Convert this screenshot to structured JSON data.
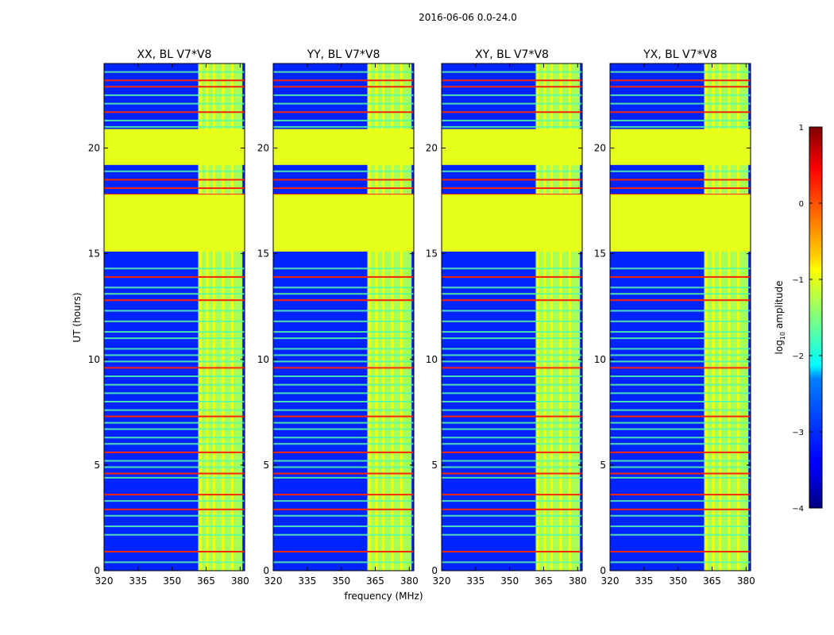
{
  "chart_data": {
    "type": "heatmap",
    "suptitle": "2016-06-06 0.0-24.0",
    "xlabel": "frequency (MHz)",
    "ylabel": "UT (hours)",
    "xlim": [
      320,
      382
    ],
    "ylim": [
      0,
      24
    ],
    "xticks": [
      320,
      335,
      350,
      365,
      380
    ],
    "xtick_labels": [
      "320",
      "335",
      "350",
      "365",
      "380"
    ],
    "yticks": [
      0,
      5,
      10,
      15,
      20
    ],
    "ytick_labels": [
      "0",
      "5",
      "10",
      "15",
      "20"
    ],
    "colorbar": {
      "label_prefix": "log",
      "label_sub": "10",
      "label_suffix": " amplitude",
      "range": [
        -4,
        1
      ],
      "ticks": [
        -4,
        -3,
        -2,
        -1,
        0,
        1
      ],
      "tick_labels": [
        "−4",
        "−3",
        "−2",
        "−1",
        "0",
        "1"
      ],
      "colormap": "jet"
    },
    "panels": [
      {
        "title": "XX, BL V7*V8"
      },
      {
        "title": "YY, BL V7*V8"
      },
      {
        "title": "XY, BL V7*V8"
      },
      {
        "title": "YX, BL V7*V8"
      }
    ],
    "flagged_ut_ranges": [
      [
        15.1,
        17.8
      ],
      [
        19.2,
        20.9
      ]
    ],
    "flagged_value": -1.0,
    "background_value": -3.2,
    "rfi_band_mhz": [
      361.5,
      381
    ],
    "rfi_band_value": -1.3,
    "rfi_strong_channels_mhz": [
      362.5,
      365.5,
      368.5,
      372.5,
      376.5
    ],
    "hot_rows_ut": [
      0.9,
      2.9,
      3.6,
      4.6,
      5.6,
      7.3,
      9.6,
      12.8,
      13.9,
      17.8,
      18.1,
      18.5,
      21.7,
      22.9,
      23.2
    ],
    "light_rows_ut": [
      0.4,
      1.7,
      2.1,
      2.6,
      3.3,
      4.4,
      4.9,
      5.2,
      6.0,
      6.3,
      6.7,
      7.0,
      7.6,
      8.0,
      8.4,
      8.8,
      9.2,
      9.9,
      10.2,
      10.5,
      11.0,
      11.3,
      11.8,
      12.3,
      13.1,
      13.4,
      14.3,
      18.9,
      21.0,
      21.3,
      22.1,
      22.5,
      23.6
    ]
  }
}
